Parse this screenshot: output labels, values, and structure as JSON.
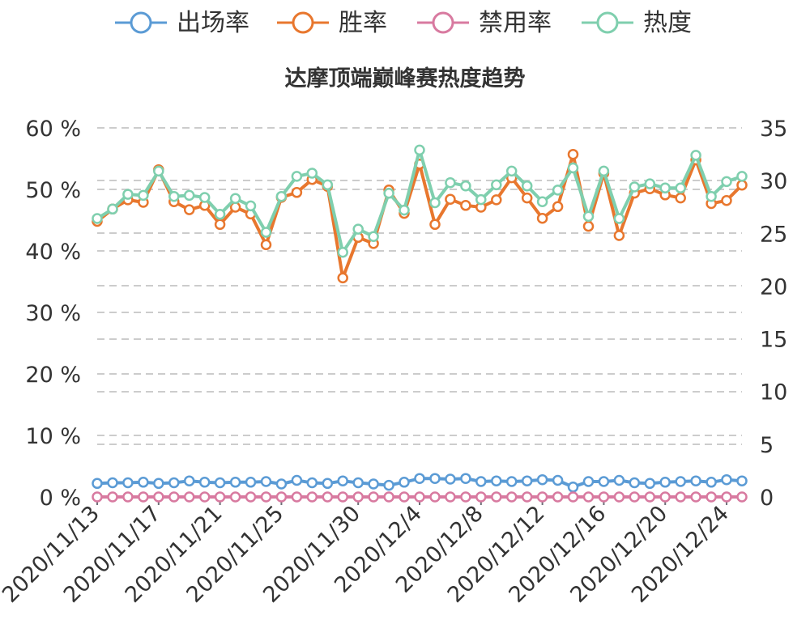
{
  "chart_data": {
    "type": "line",
    "title": "达摩顶端巅峰赛热度趋势",
    "legend": [
      {
        "name": "出场率",
        "color": "#5b9bd5"
      },
      {
        "name": "胜率",
        "color": "#e8772e"
      },
      {
        "name": "禁用率",
        "color": "#d87aa0"
      },
      {
        "name": "热度",
        "color": "#7fcfae"
      }
    ],
    "legend_position": "top-center",
    "grid": true,
    "x_tick_labels": [
      "2020/11/13",
      "2020/11/17",
      "2020/11/21",
      "2020/11/25",
      "2020/11/30",
      "2020/12/4",
      "2020/12/8",
      "2020/12/12",
      "2020/12/16",
      "2020/12/20",
      "2020/12/24"
    ],
    "y_left": {
      "ticks": [
        "0 %",
        "10 %",
        "20 %",
        "30 %",
        "40 %",
        "50 %",
        "60 %"
      ],
      "ylim": [
        0,
        60
      ]
    },
    "y_right": {
      "ticks": [
        "0",
        "5",
        "10",
        "15",
        "20",
        "25",
        "30",
        "35"
      ],
      "ylim": [
        0,
        35
      ]
    },
    "series": [
      {
        "name": "出场率",
        "axis": "left",
        "color": "#5b9bd5",
        "values": [
          2.2,
          2.3,
          2.3,
          2.4,
          2.2,
          2.3,
          2.6,
          2.4,
          2.3,
          2.4,
          2.4,
          2.5,
          2.1,
          2.7,
          2.3,
          2.2,
          2.6,
          2.3,
          2.1,
          1.9,
          2.4,
          3.0,
          3.0,
          2.9,
          3.0,
          2.5,
          2.6,
          2.5,
          2.6,
          2.8,
          2.7,
          1.6,
          2.5,
          2.5,
          2.7,
          2.3,
          2.2,
          2.4,
          2.5,
          2.6,
          2.4,
          2.8,
          2.6
        ]
      },
      {
        "name": "胜率",
        "axis": "left",
        "color": "#e8772e",
        "values": [
          44.8,
          46.8,
          48.3,
          47.9,
          53.2,
          48.0,
          46.7,
          47.4,
          44.3,
          47.1,
          46.0,
          41.0,
          48.7,
          49.5,
          51.6,
          50.5,
          35.6,
          42.2,
          41.2,
          49.9,
          46.1,
          54.1,
          44.3,
          48.4,
          47.4,
          47.1,
          48.3,
          51.9,
          48.6,
          45.3,
          47.2,
          55.7,
          44.0,
          52.6,
          42.5,
          49.4,
          50.1,
          49.1,
          48.6,
          54.8,
          47.7,
          48.2,
          50.7
        ]
      },
      {
        "name": "禁用率",
        "axis": "left",
        "color": "#d87aa0",
        "values": [
          0,
          0,
          0,
          0,
          0,
          0,
          0,
          0,
          0,
          0,
          0,
          0,
          0,
          0,
          0,
          0,
          0,
          0,
          0,
          0,
          0,
          0,
          0,
          0,
          0,
          0,
          0,
          0,
          0,
          0,
          0,
          0,
          0,
          0,
          0,
          0,
          0,
          0,
          0,
          0,
          0,
          0,
          0
        ]
      },
      {
        "name": "热度",
        "axis": "right",
        "color": "#7fcfae",
        "values": [
          26.4,
          27.3,
          28.7,
          28.6,
          30.9,
          28.5,
          28.6,
          28.4,
          26.8,
          28.3,
          27.6,
          25.1,
          28.5,
          30.4,
          30.7,
          29.6,
          23.2,
          25.4,
          24.7,
          28.8,
          27.2,
          32.9,
          27.9,
          29.8,
          29.5,
          28.2,
          29.6,
          30.9,
          29.5,
          28.0,
          29.1,
          31.2,
          26.6,
          30.9,
          26.4,
          29.4,
          29.7,
          29.3,
          29.3,
          32.4,
          28.5,
          29.9,
          30.4
        ]
      }
    ]
  }
}
